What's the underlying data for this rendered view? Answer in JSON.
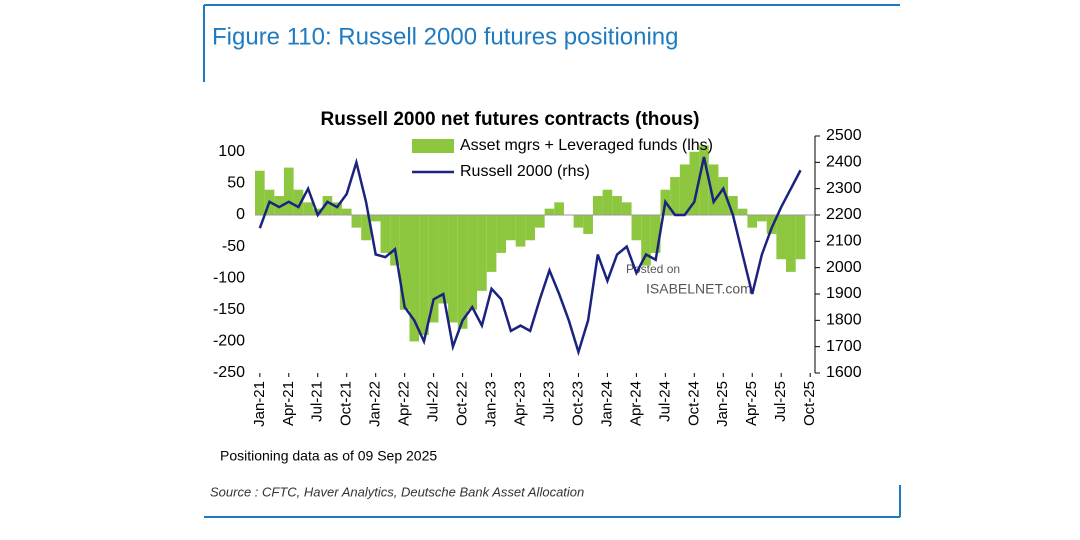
{
  "header": {
    "title": "Figure 110: Russell 2000 futures positioning"
  },
  "chart_data": {
    "type": "bar-line",
    "title": "Russell 2000 net futures contracts  (thous)",
    "categories": [
      "Jan-21",
      null,
      null,
      "Apr-21",
      null,
      null,
      "Jul-21",
      null,
      null,
      "Oct-21",
      null,
      null,
      "Jan-22",
      null,
      null,
      "Apr-22",
      null,
      null,
      "Jul-22",
      null,
      null,
      "Oct-22",
      null,
      null,
      "Jan-23",
      null,
      null,
      "Apr-23",
      null,
      null,
      "Jul-23",
      null,
      null,
      "Oct-23",
      null,
      null,
      "Jan-24",
      null,
      null,
      "Apr-24",
      null,
      null,
      "Jul-24",
      null,
      null,
      "Oct-24",
      null,
      null,
      "Jan-25",
      null,
      null,
      "Apr-25",
      null,
      null,
      "Jul-25",
      null,
      null,
      "Oct-25"
    ],
    "series": [
      {
        "name": "Asset mgrs + Leveraged funds (lhs)",
        "type": "bar",
        "color": "#8dc63f",
        "values": [
          70,
          40,
          30,
          75,
          40,
          20,
          10,
          30,
          20,
          10,
          -20,
          -40,
          -10,
          -60,
          -80,
          -150,
          -200,
          -190,
          -170,
          -140,
          -170,
          -180,
          -150,
          -120,
          -90,
          -60,
          -40,
          -50,
          -40,
          -20,
          10,
          20,
          0,
          -20,
          -30,
          30,
          40,
          30,
          20,
          -40,
          -80,
          -60,
          40,
          60,
          80,
          100,
          110,
          80,
          60,
          30,
          10,
          -20,
          -10,
          -30,
          -70,
          -90,
          -70,
          null
        ]
      },
      {
        "name": "Russell 2000 (rhs)",
        "type": "line",
        "axis": "y2",
        "color": "#1a237e",
        "values": [
          2150,
          2250,
          2230,
          2250,
          2230,
          2300,
          2200,
          2250,
          2230,
          2280,
          2400,
          2250,
          2050,
          2040,
          2070,
          1850,
          1800,
          1720,
          1880,
          1900,
          1700,
          1800,
          1850,
          1780,
          1920,
          1880,
          1760,
          1780,
          1760,
          1880,
          1990,
          1900,
          1800,
          1680,
          1800,
          2050,
          1950,
          2050,
          2080,
          1980,
          2050,
          2030,
          2250,
          2200,
          2200,
          2250,
          2420,
          2250,
          2300,
          2200,
          2050,
          1900,
          2050,
          2150,
          2230,
          2300,
          2370,
          null
        ]
      }
    ],
    "ylim": [
      -250,
      125
    ],
    "yticks": [
      -250,
      -200,
      -150,
      -100,
      -50,
      0,
      50,
      100
    ],
    "y2lim": [
      1600,
      2500
    ],
    "y2ticks": [
      1600,
      1700,
      1800,
      1900,
      2000,
      2100,
      2200,
      2300,
      2400,
      2500
    ],
    "legend": "top",
    "note": "Positioning data as of 09 Sep 2025",
    "watermark": [
      "Posted on",
      "ISABELNET.com"
    ]
  },
  "source": "Source : CFTC, Haver Analytics, Deutsche Bank Asset Allocation"
}
